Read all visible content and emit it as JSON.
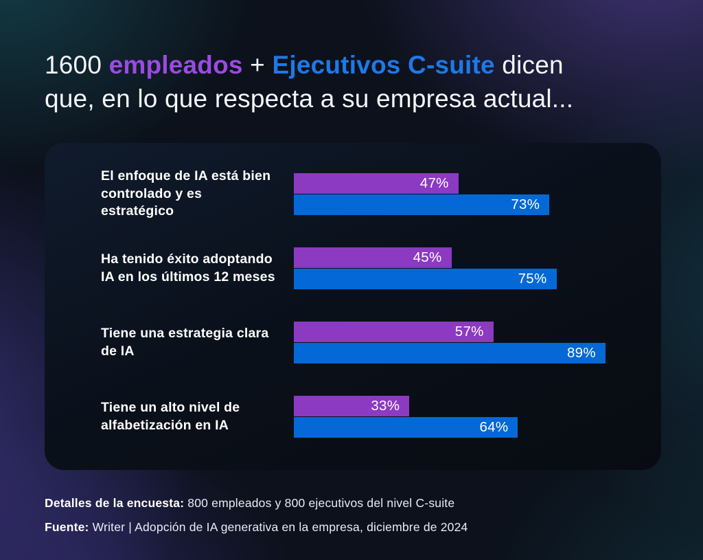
{
  "title": {
    "segments": [
      {
        "text": "1600 ",
        "style": "white"
      },
      {
        "text": "empleados",
        "style": "purple"
      },
      {
        "text": " + ",
        "style": "white"
      },
      {
        "text": "Ejecutivos C-suite",
        "style": "blue"
      },
      {
        "text": " dicen",
        "style": "white"
      }
    ],
    "line2": "que, en lo que respecta a su empresa actual..."
  },
  "chart_data": {
    "type": "bar",
    "orientation": "horizontal",
    "categories": [
      "El enfoque de IA está bien controlado y es estratégico",
      "Ha tenido éxito adoptando IA en los últimos 12 meses",
      "Tiene una estrategia clara de IA",
      "Tiene un alto nivel de alfabetización en IA"
    ],
    "series": [
      {
        "name": "Empleados",
        "color": "#8b3ac1",
        "values": [
          47,
          45,
          57,
          33
        ]
      },
      {
        "name": "Ejecutivos C-suite",
        "color": "#0469d6",
        "values": [
          73,
          75,
          89,
          64
        ]
      }
    ],
    "value_suffix": "%",
    "xlim": [
      0,
      100
    ],
    "grid": false,
    "legend": "inline-title-colors",
    "value_labels": "inside-end"
  },
  "colors": {
    "title_purple": "#9b4be0",
    "title_blue": "#1d79e8",
    "bar_purple": "#8b3ac1",
    "bar_blue": "#0469d6",
    "panel_bg": "#0a101a",
    "background": "#0c111b"
  },
  "footer": {
    "line1_label": "Detalles de la encuesta:",
    "line1_text": " 800 empleados y 800 ejecutivos del nivel C-suite",
    "line2_label": "Fuente:",
    "line2_text": " Writer | Adopción de IA generativa en la empresa, diciembre de 2024"
  }
}
